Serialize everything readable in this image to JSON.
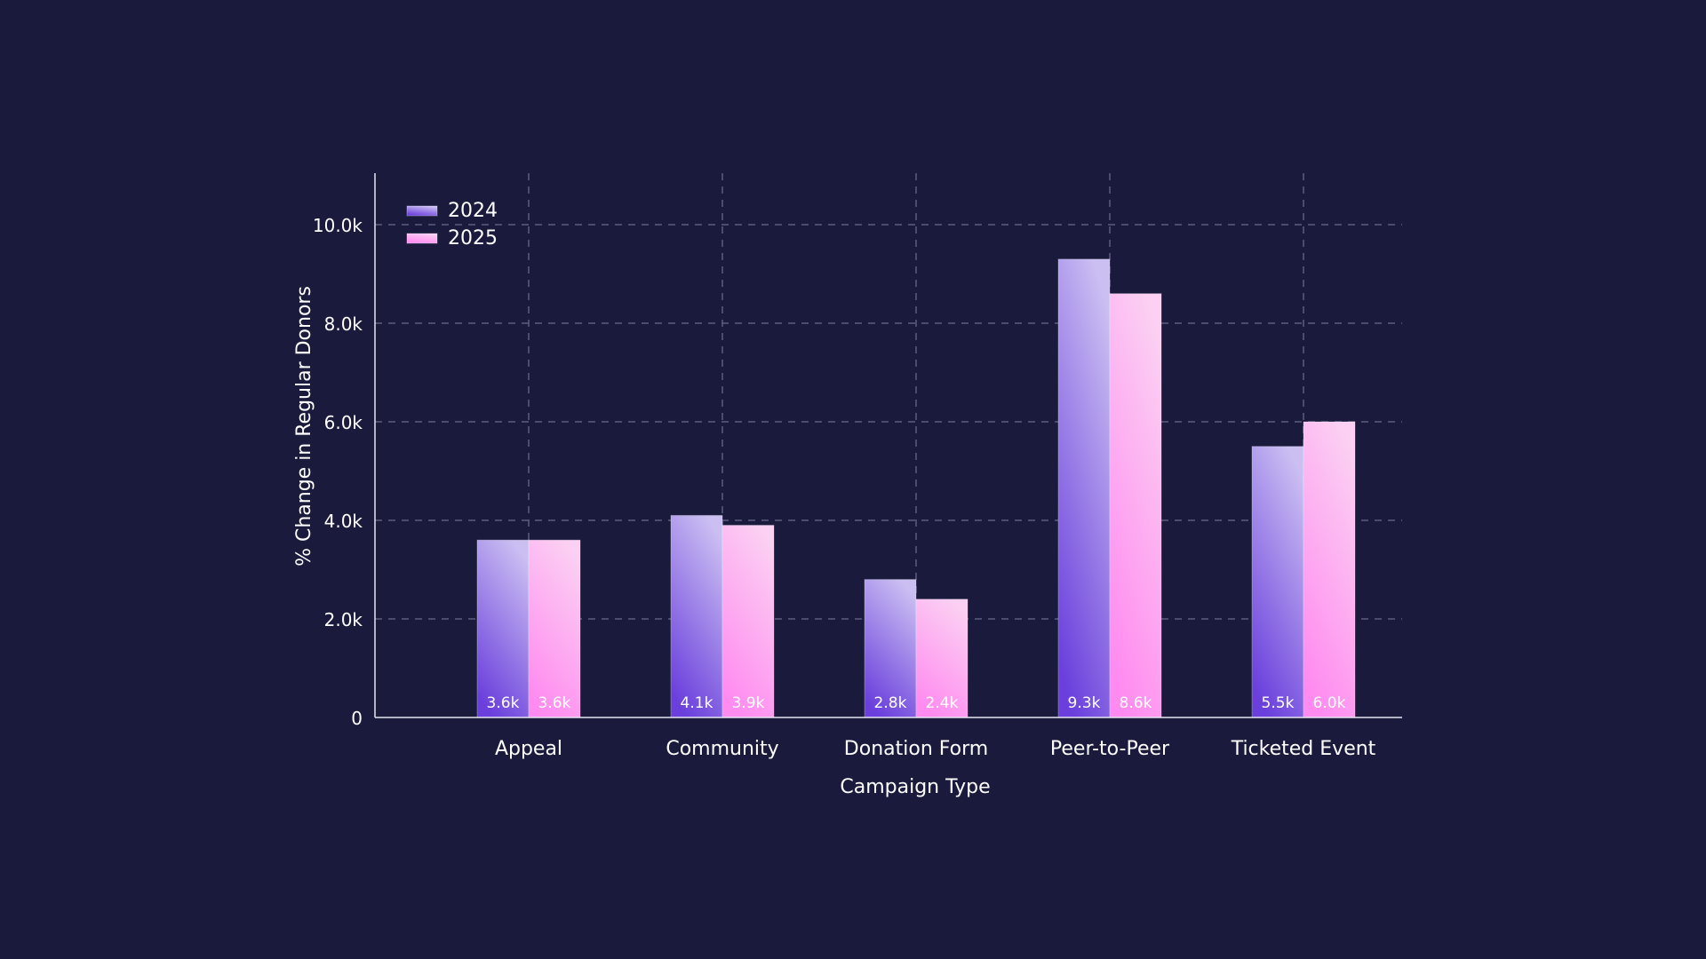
{
  "chart_data": {
    "type": "bar",
    "title": "",
    "xlabel": "Campaign Type",
    "ylabel": "% Change in Regular Donors",
    "categories": [
      "Appeal",
      "Community",
      "Donation Form",
      "Peer-to-Peer",
      "Ticketed Event"
    ],
    "series": [
      {
        "name": "2024",
        "values": [
          3600,
          4100,
          2800,
          9300,
          5500
        ],
        "labels": [
          "3.6k",
          "4.1k",
          "2.8k",
          "9.3k",
          "5.5k"
        ],
        "color_bottom": "#6a3fdc",
        "color_top": "#cbbff2"
      },
      {
        "name": "2025",
        "values": [
          3600,
          3900,
          2400,
          8600,
          6000
        ],
        "labels": [
          "3.6k",
          "3.9k",
          "2.4k",
          "8.6k",
          "6.0k"
        ],
        "color_bottom": "#ff8af0",
        "color_top": "#fbd0f2"
      }
    ],
    "yticks": [
      0,
      2000,
      4000,
      6000,
      8000,
      10000
    ],
    "ytick_labels": [
      "0",
      "2.0k",
      "4.0k",
      "6.0k",
      "8.0k",
      "10.0k"
    ],
    "ylim": [
      0,
      11000
    ],
    "grid": true,
    "legend": "top-left",
    "background": "#1a1a3d"
  }
}
